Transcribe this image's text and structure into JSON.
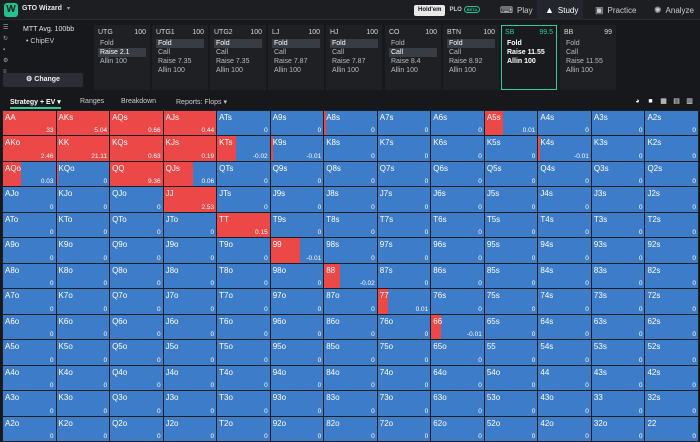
{
  "app": {
    "name": "GTO Wizard"
  },
  "game_toggle": {
    "a": "Hold'em",
    "b": "PLO",
    "beta": "BETA"
  },
  "nav": {
    "play": "Play",
    "study": "Study",
    "practice": "Practice",
    "analyze": "Analyze"
  },
  "panel": {
    "title": "MTT  Avg. 100bb",
    "subtitle": "ChipEV",
    "change": "Change"
  },
  "positions": [
    {
      "name": "UTG",
      "stack": "100",
      "actions": [
        "Fold",
        "Raise 2.1",
        "Allin 100"
      ],
      "chosen": 1
    },
    {
      "name": "UTG1",
      "stack": "100",
      "actions": [
        "Fold",
        "Call",
        "Raise 7.35",
        "Allin 100"
      ],
      "chosen": 0
    },
    {
      "name": "UTG2",
      "stack": "100",
      "actions": [
        "Fold",
        "Call",
        "Raise 7.35",
        "Allin 100"
      ],
      "chosen": 0
    },
    {
      "name": "LJ",
      "stack": "100",
      "actions": [
        "Fold",
        "Call",
        "Raise 7.87",
        "Allin 100"
      ],
      "chosen": 0
    },
    {
      "name": "HJ",
      "stack": "100",
      "actions": [
        "Fold",
        "Call",
        "Raise 7.87",
        "Allin 100"
      ],
      "chosen": 0
    },
    {
      "name": "CO",
      "stack": "100",
      "actions": [
        "Fold",
        "Call",
        "Raise 8.4",
        "Allin 100"
      ],
      "chosen": 1
    },
    {
      "name": "BTN",
      "stack": "100",
      "actions": [
        "Fold",
        "Call",
        "Raise 8.92",
        "Allin 100"
      ],
      "chosen": 0
    },
    {
      "name": "SB",
      "stack": "99.5",
      "actions": [
        "Fold",
        "Raise 11.55",
        "Allin 100"
      ],
      "chosen": -1,
      "selected": true
    },
    {
      "name": "BB",
      "stack": "99",
      "actions": [
        "Fold",
        "Call",
        "Raise 11.55",
        "Allin 100"
      ],
      "chosen": -1
    }
  ],
  "tabs": {
    "strategy": "Strategy + EV",
    "ranges": "Ranges",
    "breakdown": "Breakdown",
    "reports": "Reports: Flops"
  },
  "matrix": [
    [
      [
        "AA",
        "33",
        1
      ],
      [
        "AKs",
        "5.04",
        1
      ],
      [
        "AQs",
        "0.66",
        1
      ],
      [
        "AJs",
        "0.44",
        1
      ],
      [
        "ATs",
        "0",
        0
      ],
      [
        "A9s",
        "0",
        0
      ],
      [
        "A8s",
        "0",
        0.03
      ],
      [
        "A7s",
        "0",
        0
      ],
      [
        "A6s",
        "0",
        0
      ],
      [
        "A5s",
        "0.01",
        0.35
      ],
      [
        "A4s",
        "0",
        0
      ],
      [
        "A3s",
        "0",
        0
      ],
      [
        "A2s",
        "0",
        0
      ]
    ],
    [
      [
        "AKo",
        "2.46",
        1
      ],
      [
        "KK",
        "21.11",
        1
      ],
      [
        "KQs",
        "0.63",
        1
      ],
      [
        "KJs",
        "0.19",
        1
      ],
      [
        "KTs",
        "-0.02",
        0.35
      ],
      [
        "K9s",
        "-0.01",
        0.05
      ],
      [
        "K8s",
        "0",
        0
      ],
      [
        "K7s",
        "0",
        0
      ],
      [
        "K6s",
        "0",
        0
      ],
      [
        "K5s",
        "0",
        0
      ],
      [
        "K4s",
        "-0.01",
        0.03
      ],
      [
        "K3s",
        "0",
        0
      ],
      [
        "K2s",
        "0",
        0
      ]
    ],
    [
      [
        "AQo",
        "0.03",
        0.35
      ],
      [
        "KQo",
        "0",
        0.03
      ],
      [
        "QQ",
        "9.36",
        1
      ],
      [
        "QJs",
        "0.06",
        0.55
      ],
      [
        "QTs",
        "0",
        0
      ],
      [
        "Q9s",
        "0",
        0
      ],
      [
        "Q8s",
        "0",
        0
      ],
      [
        "Q7s",
        "0",
        0
      ],
      [
        "Q6s",
        "0",
        0
      ],
      [
        "Q5s",
        "0",
        0
      ],
      [
        "Q4s",
        "0",
        0
      ],
      [
        "Q3s",
        "0",
        0
      ],
      [
        "Q2s",
        "0",
        0
      ]
    ],
    [
      [
        "AJo",
        "0",
        0
      ],
      [
        "KJo",
        "0",
        0
      ],
      [
        "QJo",
        "0",
        0
      ],
      [
        "JJ",
        "2.53",
        1
      ],
      [
        "JTs",
        "0",
        0
      ],
      [
        "J9s",
        "0",
        0
      ],
      [
        "J8s",
        "0",
        0
      ],
      [
        "J7s",
        "0",
        0
      ],
      [
        "J6s",
        "0",
        0
      ],
      [
        "J5s",
        "0",
        0
      ],
      [
        "J4s",
        "0",
        0
      ],
      [
        "J3s",
        "0",
        0
      ],
      [
        "J2s",
        "0",
        0
      ]
    ],
    [
      [
        "ATo",
        "0",
        0
      ],
      [
        "KTo",
        "0",
        0
      ],
      [
        "QTo",
        "0",
        0
      ],
      [
        "JTo",
        "0",
        0
      ],
      [
        "TT",
        "0.15",
        1
      ],
      [
        "T9s",
        "0",
        0
      ],
      [
        "T8s",
        "0",
        0
      ],
      [
        "T7s",
        "0",
        0
      ],
      [
        "T6s",
        "0",
        0
      ],
      [
        "T5s",
        "0",
        0
      ],
      [
        "T4s",
        "0",
        0
      ],
      [
        "T3s",
        "0",
        0
      ],
      [
        "T2s",
        "0",
        0
      ]
    ],
    [
      [
        "A9o",
        "0",
        0
      ],
      [
        "K9o",
        "0",
        0
      ],
      [
        "Q9o",
        "0",
        0
      ],
      [
        "J9o",
        "0",
        0
      ],
      [
        "T9o",
        "0",
        0
      ],
      [
        "99",
        "-0.01",
        0.55
      ],
      [
        "98s",
        "0",
        0
      ],
      [
        "97s",
        "0",
        0
      ],
      [
        "96s",
        "0",
        0
      ],
      [
        "95s",
        "0",
        0
      ],
      [
        "94s",
        "0",
        0
      ],
      [
        "93s",
        "0",
        0
      ],
      [
        "92s",
        "0",
        0
      ]
    ],
    [
      [
        "A8o",
        "0",
        0
      ],
      [
        "K8o",
        "0",
        0
      ],
      [
        "Q8o",
        "0",
        0
      ],
      [
        "J8o",
        "0",
        0
      ],
      [
        "T8o",
        "0",
        0
      ],
      [
        "98o",
        "0",
        0
      ],
      [
        "88",
        "-0.02",
        0.3
      ],
      [
        "87s",
        "0",
        0
      ],
      [
        "86s",
        "0",
        0
      ],
      [
        "85s",
        "0",
        0
      ],
      [
        "84s",
        "0",
        0
      ],
      [
        "83s",
        "0",
        0
      ],
      [
        "82s",
        "0",
        0
      ]
    ],
    [
      [
        "A7o",
        "0",
        0
      ],
      [
        "K7o",
        "0",
        0
      ],
      [
        "Q7o",
        "0",
        0
      ],
      [
        "J7o",
        "0",
        0
      ],
      [
        "T7o",
        "0",
        0
      ],
      [
        "97o",
        "0",
        0
      ],
      [
        "87o",
        "0",
        0
      ],
      [
        "77",
        "0.01",
        0.2
      ],
      [
        "76s",
        "0",
        0
      ],
      [
        "75s",
        "0",
        0
      ],
      [
        "74s",
        "0",
        0
      ],
      [
        "73s",
        "0",
        0
      ],
      [
        "72s",
        "0",
        0
      ]
    ],
    [
      [
        "A6o",
        "0",
        0
      ],
      [
        "K6o",
        "0",
        0
      ],
      [
        "Q6o",
        "0",
        0
      ],
      [
        "J6o",
        "0",
        0
      ],
      [
        "T6o",
        "0",
        0
      ],
      [
        "96o",
        "0",
        0
      ],
      [
        "86o",
        "0",
        0
      ],
      [
        "76o",
        "0",
        0
      ],
      [
        "66",
        "-0.01",
        0.18
      ],
      [
        "65s",
        "0",
        0
      ],
      [
        "64s",
        "0",
        0
      ],
      [
        "63s",
        "0",
        0
      ],
      [
        "62s",
        "0",
        0
      ]
    ],
    [
      [
        "A5o",
        "0",
        0
      ],
      [
        "K5o",
        "0",
        0
      ],
      [
        "Q5o",
        "0",
        0
      ],
      [
        "J5o",
        "0",
        0
      ],
      [
        "T5o",
        "0",
        0
      ],
      [
        "95o",
        "0",
        0
      ],
      [
        "85o",
        "0",
        0
      ],
      [
        "75o",
        "0",
        0
      ],
      [
        "65o",
        "0",
        0
      ],
      [
        "55",
        "0",
        0
      ],
      [
        "54s",
        "0",
        0
      ],
      [
        "53s",
        "0",
        0
      ],
      [
        "52s",
        "0",
        0
      ]
    ],
    [
      [
        "A4o",
        "0",
        0
      ],
      [
        "K4o",
        "0",
        0
      ],
      [
        "Q4o",
        "0",
        0
      ],
      [
        "J4o",
        "0",
        0
      ],
      [
        "T4o",
        "0",
        0
      ],
      [
        "94o",
        "0",
        0
      ],
      [
        "84o",
        "0",
        0
      ],
      [
        "74o",
        "0",
        0
      ],
      [
        "64o",
        "0",
        0
      ],
      [
        "54o",
        "0",
        0
      ],
      [
        "44",
        "0",
        0
      ],
      [
        "43s",
        "0",
        0
      ],
      [
        "42s",
        "0",
        0
      ]
    ],
    [
      [
        "A3o",
        "0",
        0
      ],
      [
        "K3o",
        "0",
        0
      ],
      [
        "Q3o",
        "0",
        0
      ],
      [
        "J3o",
        "0",
        0
      ],
      [
        "T3o",
        "0",
        0
      ],
      [
        "93o",
        "0",
        0
      ],
      [
        "83o",
        "0",
        0
      ],
      [
        "73o",
        "0",
        0
      ],
      [
        "63o",
        "0",
        0
      ],
      [
        "53o",
        "0",
        0
      ],
      [
        "43o",
        "0",
        0
      ],
      [
        "33",
        "0",
        0
      ],
      [
        "32s",
        "0",
        0
      ]
    ],
    [
      [
        "A2o",
        "0",
        0
      ],
      [
        "K2o",
        "0",
        0
      ],
      [
        "Q2o",
        "0",
        0
      ],
      [
        "J2o",
        "0",
        0
      ],
      [
        "T2o",
        "0",
        0
      ],
      [
        "92o",
        "0",
        0
      ],
      [
        "82o",
        "0",
        0
      ],
      [
        "72o",
        "0",
        0
      ],
      [
        "62o",
        "0",
        0
      ],
      [
        "52o",
        "0",
        0
      ],
      [
        "42o",
        "0",
        0
      ],
      [
        "32o",
        "0",
        0
      ],
      [
        "22",
        "0",
        0
      ]
    ]
  ],
  "colors": {
    "raise": "#ec4848",
    "fold": "#3d7cc9",
    "accent": "#2ccd96"
  }
}
